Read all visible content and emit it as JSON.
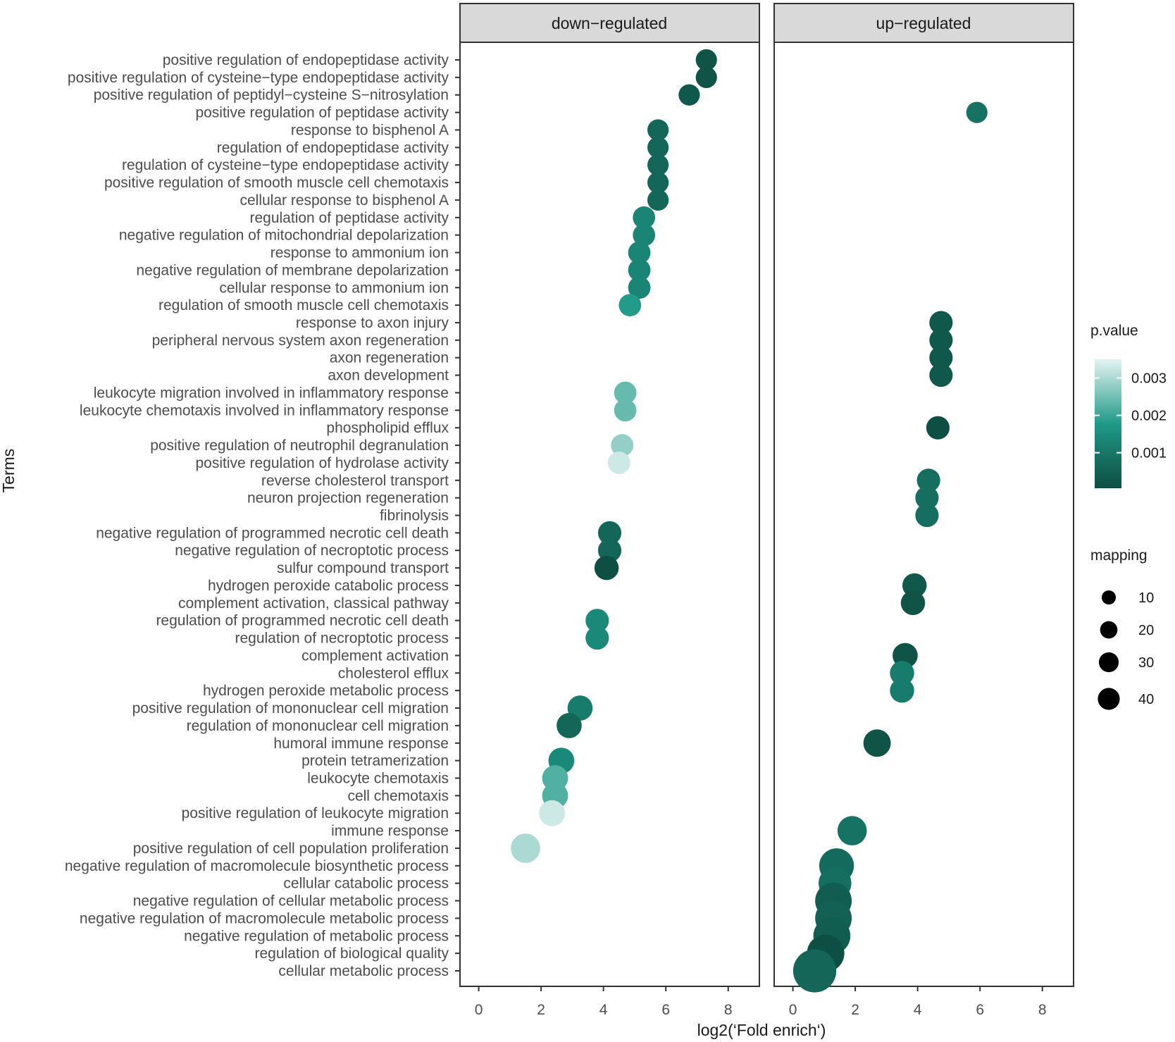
{
  "chart_data": {
    "type": "scatter",
    "xlabel": "log2(‘Fold enrich‘)",
    "ylabel": "Terms",
    "xlim": [
      -0.6,
      9.0
    ],
    "xticks": [
      0,
      2,
      4,
      6,
      8
    ],
    "panels": [
      "down−regulated",
      "up−regulated"
    ],
    "terms": [
      "positive regulation of endopeptidase activity",
      "positive regulation of cysteine−type endopeptidase activity",
      "positive regulation of peptidyl−cysteine S−nitrosylation",
      "positive regulation of peptidase activity",
      "response to bisphenol A",
      "regulation of endopeptidase activity",
      "regulation of cysteine−type endopeptidase activity",
      "positive regulation of smooth muscle cell chemotaxis",
      "cellular response to bisphenol A",
      "regulation of peptidase activity",
      "negative regulation of mitochondrial depolarization",
      "response to ammonium ion",
      "negative regulation of membrane depolarization",
      "cellular response to ammonium ion",
      "regulation of smooth muscle cell chemotaxis",
      "response to axon injury",
      "peripheral nervous system axon regeneration",
      "axon regeneration",
      "axon development",
      "leukocyte migration involved in inflammatory response",
      "leukocyte chemotaxis involved in inflammatory response",
      "phospholipid efflux",
      "positive regulation of neutrophil degranulation",
      "positive regulation of hydrolase activity",
      "reverse cholesterol transport",
      "neuron projection regeneration",
      "fibrinolysis",
      "negative regulation of programmed necrotic cell death",
      "negative regulation of necroptotic process",
      "sulfur compound transport",
      "hydrogen peroxide catabolic process",
      "complement activation, classical pathway",
      "regulation of programmed necrotic cell death",
      "regulation of necroptotic process",
      "complement activation",
      "cholesterol efflux",
      "hydrogen peroxide metabolic process",
      "positive regulation of mononuclear cell migration",
      "regulation of mononuclear cell migration",
      "humoral immune response",
      "protein tetramerization",
      "leukocyte chemotaxis",
      "cell chemotaxis",
      "positive regulation of leukocyte migration",
      "immune response",
      "positive regulation of cell population proliferation",
      "negative regulation of macromolecule biosynthetic process",
      "cellular catabolic process",
      "negative regulation of cellular metabolic process",
      "negative regulation of macromolecule metabolic process",
      "negative regulation of metabolic process",
      "regulation of biological quality",
      "cellular metabolic process"
    ],
    "points": [
      {
        "panel": 0,
        "term": 0,
        "x": 7.3,
        "mapping": 4,
        "p": 0.0002
      },
      {
        "panel": 0,
        "term": 1,
        "x": 7.3,
        "mapping": 4,
        "p": 0.0002
      },
      {
        "panel": 0,
        "term": 2,
        "x": 6.75,
        "mapping": 4,
        "p": 0.0003
      },
      {
        "panel": 1,
        "term": 3,
        "x": 5.9,
        "mapping": 4,
        "p": 0.0009
      },
      {
        "panel": 0,
        "term": 4,
        "x": 5.75,
        "mapping": 4,
        "p": 0.0006
      },
      {
        "panel": 0,
        "term": 5,
        "x": 5.75,
        "mapping": 4,
        "p": 0.0006
      },
      {
        "panel": 0,
        "term": 6,
        "x": 5.75,
        "mapping": 4,
        "p": 0.0006
      },
      {
        "panel": 0,
        "term": 7,
        "x": 5.75,
        "mapping": 4,
        "p": 0.0006
      },
      {
        "panel": 0,
        "term": 8,
        "x": 5.75,
        "mapping": 4,
        "p": 0.0006
      },
      {
        "panel": 0,
        "term": 9,
        "x": 5.3,
        "mapping": 5,
        "p": 0.0013
      },
      {
        "panel": 0,
        "term": 10,
        "x": 5.3,
        "mapping": 5,
        "p": 0.0013
      },
      {
        "panel": 0,
        "term": 11,
        "x": 5.15,
        "mapping": 5,
        "p": 0.0013
      },
      {
        "panel": 0,
        "term": 12,
        "x": 5.15,
        "mapping": 5,
        "p": 0.0013
      },
      {
        "panel": 0,
        "term": 13,
        "x": 5.15,
        "mapping": 5,
        "p": 0.0013
      },
      {
        "panel": 0,
        "term": 14,
        "x": 4.85,
        "mapping": 5,
        "p": 0.0018
      },
      {
        "panel": 1,
        "term": 15,
        "x": 4.75,
        "mapping": 6,
        "p": 0.0003
      },
      {
        "panel": 1,
        "term": 16,
        "x": 4.75,
        "mapping": 6,
        "p": 0.0003
      },
      {
        "panel": 1,
        "term": 17,
        "x": 4.75,
        "mapping": 6,
        "p": 0.0003
      },
      {
        "panel": 1,
        "term": 18,
        "x": 4.75,
        "mapping": 6,
        "p": 0.0003
      },
      {
        "panel": 0,
        "term": 19,
        "x": 4.7,
        "mapping": 5,
        "p": 0.0024
      },
      {
        "panel": 0,
        "term": 20,
        "x": 4.7,
        "mapping": 5,
        "p": 0.0024
      },
      {
        "panel": 1,
        "term": 21,
        "x": 4.65,
        "mapping": 6,
        "p": 0.0001
      },
      {
        "panel": 0,
        "term": 22,
        "x": 4.6,
        "mapping": 5,
        "p": 0.0028
      },
      {
        "panel": 0,
        "term": 23,
        "x": 4.5,
        "mapping": 5,
        "p": 0.0033
      },
      {
        "panel": 1,
        "term": 24,
        "x": 4.35,
        "mapping": 6,
        "p": 0.0008
      },
      {
        "panel": 1,
        "term": 25,
        "x": 4.3,
        "mapping": 6,
        "p": 0.0008
      },
      {
        "panel": 1,
        "term": 26,
        "x": 4.3,
        "mapping": 6,
        "p": 0.0008
      },
      {
        "panel": 0,
        "term": 27,
        "x": 4.2,
        "mapping": 6,
        "p": 0.0006
      },
      {
        "panel": 0,
        "term": 28,
        "x": 4.2,
        "mapping": 6,
        "p": 0.0006
      },
      {
        "panel": 0,
        "term": 29,
        "x": 4.1,
        "mapping": 7,
        "p": 0.0001
      },
      {
        "panel": 1,
        "term": 30,
        "x": 3.9,
        "mapping": 7,
        "p": 0.0003
      },
      {
        "panel": 1,
        "term": 31,
        "x": 3.85,
        "mapping": 7,
        "p": 0.0002
      },
      {
        "panel": 0,
        "term": 32,
        "x": 3.8,
        "mapping": 6,
        "p": 0.0014
      },
      {
        "panel": 0,
        "term": 33,
        "x": 3.8,
        "mapping": 6,
        "p": 0.0014
      },
      {
        "panel": 1,
        "term": 34,
        "x": 3.6,
        "mapping": 8,
        "p": 0.0002
      },
      {
        "panel": 1,
        "term": 35,
        "x": 3.5,
        "mapping": 7,
        "p": 0.0011
      },
      {
        "panel": 1,
        "term": 36,
        "x": 3.5,
        "mapping": 7,
        "p": 0.0011
      },
      {
        "panel": 0,
        "term": 37,
        "x": 3.25,
        "mapping": 8,
        "p": 0.0011
      },
      {
        "panel": 0,
        "term": 38,
        "x": 2.9,
        "mapping": 8,
        "p": 0.0006
      },
      {
        "panel": 1,
        "term": 39,
        "x": 2.7,
        "mapping": 11,
        "p": 0.0002
      },
      {
        "panel": 0,
        "term": 40,
        "x": 2.65,
        "mapping": 9,
        "p": 0.0014
      },
      {
        "panel": 0,
        "term": 41,
        "x": 2.45,
        "mapping": 9,
        "p": 0.0022
      },
      {
        "panel": 0,
        "term": 42,
        "x": 2.45,
        "mapping": 9,
        "p": 0.0022
      },
      {
        "panel": 0,
        "term": 43,
        "x": 2.35,
        "mapping": 9,
        "p": 0.0033
      },
      {
        "panel": 1,
        "term": 44,
        "x": 1.9,
        "mapping": 14,
        "p": 0.0009
      },
      {
        "panel": 0,
        "term": 45,
        "x": 1.5,
        "mapping": 14,
        "p": 0.003
      },
      {
        "panel": 1,
        "term": 46,
        "x": 1.4,
        "mapping": 24,
        "p": 0.0007
      },
      {
        "panel": 1,
        "term": 47,
        "x": 1.35,
        "mapping": 20,
        "p": 0.0008
      },
      {
        "panel": 1,
        "term": 48,
        "x": 1.3,
        "mapping": 28,
        "p": 0.0004
      },
      {
        "panel": 1,
        "term": 49,
        "x": 1.3,
        "mapping": 28,
        "p": 0.0005
      },
      {
        "panel": 1,
        "term": 50,
        "x": 1.25,
        "mapping": 29,
        "p": 0.0004
      },
      {
        "panel": 1,
        "term": 51,
        "x": 1.05,
        "mapping": 30,
        "p": 0.0001
      },
      {
        "panel": 1,
        "term": 52,
        "x": 0.7,
        "mapping": 45,
        "p": 0.0006
      }
    ],
    "color_legend": {
      "title": "p.value",
      "labels": [
        "0.003",
        "0.002",
        "0.001"
      ],
      "values": [
        0.003,
        0.002,
        0.001
      ],
      "low_color": "#0e4d41",
      "mid_color": "#1f9a88",
      "high_color": "#e4f3f2"
    },
    "size_legend": {
      "title": "mapping",
      "labels": [
        "10",
        "20",
        "30",
        "40"
      ],
      "values": [
        10,
        20,
        30,
        40
      ]
    },
    "strip_color": "#d9d9d9"
  }
}
